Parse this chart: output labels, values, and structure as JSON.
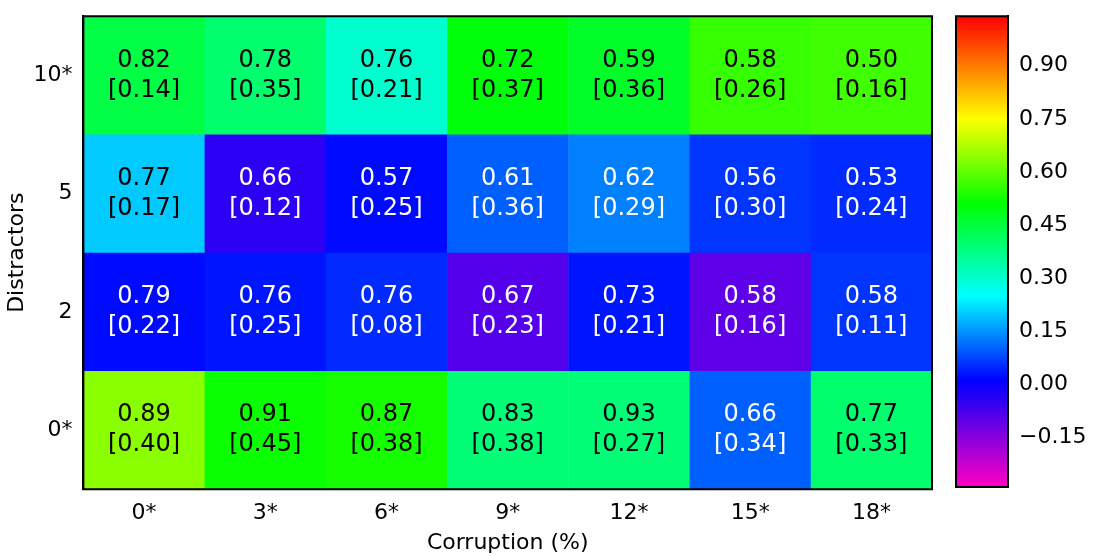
{
  "chart_data": {
    "type": "heatmap",
    "xlabel": "Corruption (%)",
    "ylabel": "Distractors",
    "categories": [
      "0*",
      "3*",
      "6*",
      "9*",
      "12*",
      "15*",
      "18*"
    ],
    "y_categories": [
      "10*",
      "5",
      "2",
      "0*"
    ],
    "cells": [
      [
        0.44,
        0.4,
        0.3,
        0.5,
        0.47,
        0.56,
        0.57
      ],
      [
        0.2,
        -0.04,
        0.02,
        0.1,
        0.13,
        0.06,
        0.05
      ],
      [
        0.02,
        0.03,
        0.05,
        -0.09,
        0.03,
        -0.1,
        0.06
      ],
      [
        0.64,
        0.52,
        0.53,
        0.39,
        0.39,
        0.1,
        0.4
      ]
    ],
    "cell_labels": [
      [
        "0.82\n[0.14]",
        "0.78\n[0.35]",
        "0.76\n[0.21]",
        "0.72\n[0.37]",
        "0.59\n[0.36]",
        "0.58\n[0.26]",
        "0.50\n[0.16]"
      ],
      [
        "0.77\n[0.17]",
        "0.66\n[0.12]",
        "0.57\n[0.25]",
        "0.61\n[0.36]",
        "0.62\n[0.29]",
        "0.56\n[0.30]",
        "0.53\n[0.24]"
      ],
      [
        "0.79\n[0.22]",
        "0.76\n[0.25]",
        "0.76\n[0.08]",
        "0.67\n[0.23]",
        "0.73\n[0.21]",
        "0.58\n[0.16]",
        "0.58\n[0.11]"
      ],
      [
        "0.89\n[0.40]",
        "0.91\n[0.45]",
        "0.87\n[0.38]",
        "0.83\n[0.38]",
        "0.93\n[0.27]",
        "0.66\n[0.34]",
        "0.77\n[0.33]"
      ]
    ],
    "clim": [
      -0.29,
      1.04
    ],
    "cticks": [
      {
        "value": -0.15,
        "label": "−0.15"
      },
      {
        "value": 0,
        "label": "0.00"
      },
      {
        "value": 0.15,
        "label": "0.15"
      },
      {
        "value": 0.3,
        "label": "0.30"
      },
      {
        "value": 0.45,
        "label": "0.45"
      },
      {
        "value": 0.6,
        "label": "0.60"
      },
      {
        "value": 0.75,
        "label": "0.75"
      },
      {
        "value": 0.9,
        "label": "0.90"
      }
    ]
  }
}
